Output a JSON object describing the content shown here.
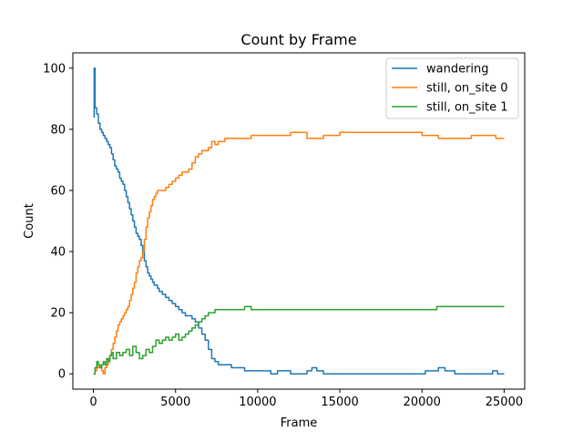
{
  "chart_data": {
    "type": "line",
    "title": "Count by Frame",
    "xlabel": "Frame",
    "ylabel": "Count",
    "xlim": [
      -1250,
      26250
    ],
    "ylim": [
      -5,
      105
    ],
    "x_ticks": [
      0,
      5000,
      10000,
      15000,
      20000,
      25000
    ],
    "y_ticks": [
      0,
      20,
      40,
      60,
      80,
      100
    ],
    "grid": false,
    "legend_position": "top-right",
    "series": [
      {
        "name": "wandering",
        "color": "#1f77b4",
        "x": [
          0,
          50,
          100,
          200,
          300,
          400,
          500,
          600,
          700,
          800,
          900,
          1000,
          1100,
          1200,
          1300,
          1400,
          1500,
          1600,
          1700,
          1800,
          1900,
          2000,
          2100,
          2200,
          2300,
          2400,
          2500,
          2600,
          2700,
          2800,
          2900,
          3000,
          3100,
          3200,
          3300,
          3400,
          3500,
          3600,
          3700,
          3800,
          3900,
          4000,
          4200,
          4400,
          4600,
          4800,
          5000,
          5200,
          5400,
          5600,
          5800,
          6000,
          6200,
          6400,
          6600,
          6800,
          7000,
          7200,
          7400,
          7600,
          7800,
          8000,
          8400,
          8800,
          9200,
          9600,
          10000,
          10400,
          10800,
          11200,
          12000,
          13000,
          13300,
          13600,
          14000,
          15000,
          16000,
          17000,
          18000,
          19000,
          19800,
          20200,
          20600,
          21000,
          21400,
          22000,
          23000,
          24000,
          24300,
          24600,
          25000
        ],
        "y": [
          84,
          100,
          87,
          85,
          82,
          80,
          79,
          78,
          77,
          76,
          75,
          74,
          72,
          70,
          68,
          67,
          66,
          64,
          63,
          62,
          60,
          58,
          56,
          54,
          52,
          50,
          48,
          46,
          45,
          44,
          42,
          40,
          37,
          35,
          33,
          32,
          31,
          30,
          29,
          29,
          28,
          27,
          26,
          25,
          24,
          23,
          22,
          21,
          20,
          19,
          19,
          18,
          17,
          15,
          13,
          11,
          8,
          5,
          4,
          3,
          3,
          3,
          2,
          2,
          1,
          1,
          1,
          1,
          0,
          1,
          0,
          1,
          2,
          1,
          0,
          0,
          0,
          0,
          0,
          0,
          0,
          1,
          1,
          2,
          1,
          0,
          0,
          0,
          1,
          0,
          0
        ]
      },
      {
        "name": "still, on_site 0",
        "color": "#ff7f0e",
        "x": [
          0,
          100,
          200,
          300,
          400,
          500,
          600,
          700,
          800,
          900,
          1000,
          1100,
          1200,
          1300,
          1400,
          1500,
          1600,
          1700,
          1800,
          1900,
          2000,
          2100,
          2200,
          2300,
          2400,
          2500,
          2600,
          2700,
          2800,
          2900,
          3000,
          3100,
          3200,
          3300,
          3400,
          3500,
          3600,
          3700,
          3800,
          3900,
          4000,
          4200,
          4400,
          4600,
          4800,
          5000,
          5200,
          5400,
          5600,
          5800,
          6000,
          6200,
          6400,
          6600,
          6800,
          7000,
          7200,
          7400,
          7600,
          7800,
          8000,
          8400,
          8800,
          9200,
          9600,
          10000,
          11000,
          12000,
          13000,
          14000,
          15000,
          16000,
          17000,
          18000,
          19000,
          20000,
          21000,
          22000,
          23000,
          24000,
          24500,
          25000
        ],
        "y": [
          0,
          1,
          2,
          3,
          2,
          1,
          0,
          2,
          3,
          5,
          6,
          8,
          10,
          12,
          14,
          16,
          17,
          18,
          19,
          20,
          21,
          22,
          24,
          26,
          28,
          30,
          33,
          35,
          37,
          38,
          40,
          44,
          48,
          51,
          53,
          55,
          57,
          58,
          59,
          60,
          60,
          60,
          61,
          62,
          63,
          64,
          65,
          66,
          66,
          67,
          69,
          71,
          72,
          73,
          73,
          74,
          76,
          75,
          76,
          76,
          77,
          77,
          77,
          77,
          78,
          78,
          78,
          79,
          77,
          78,
          79,
          79,
          79,
          79,
          79,
          78,
          77,
          77,
          78,
          78,
          77,
          77
        ]
      },
      {
        "name": "still, on_site 1",
        "color": "#2ca02c",
        "x": [
          0,
          100,
          200,
          300,
          400,
          500,
          600,
          700,
          800,
          900,
          1000,
          1100,
          1200,
          1400,
          1600,
          1800,
          2000,
          2200,
          2400,
          2600,
          2800,
          3000,
          3200,
          3400,
          3600,
          3800,
          4000,
          4200,
          4400,
          4600,
          4800,
          5000,
          5200,
          5400,
          5600,
          5800,
          6000,
          6200,
          6400,
          6600,
          6800,
          7000,
          7200,
          7400,
          7600,
          7800,
          8000,
          8400,
          8800,
          9200,
          9600,
          10000,
          11000,
          12000,
          14000,
          16000,
          18000,
          20000,
          20900,
          21200,
          22000,
          23000,
          24000,
          25000
        ],
        "y": [
          0,
          2,
          4,
          3,
          2,
          3,
          4,
          3,
          5,
          4,
          6,
          7,
          5,
          7,
          6,
          7,
          8,
          6,
          9,
          7,
          5,
          6,
          8,
          7,
          9,
          11,
          10,
          11,
          12,
          11,
          12,
          13,
          11,
          12,
          13,
          14,
          15,
          16,
          17,
          18,
          19,
          20,
          20,
          21,
          21,
          21,
          21,
          21,
          21,
          22,
          21,
          21,
          21,
          21,
          21,
          21,
          21,
          21,
          22,
          22,
          22,
          22,
          22,
          22
        ]
      }
    ]
  }
}
